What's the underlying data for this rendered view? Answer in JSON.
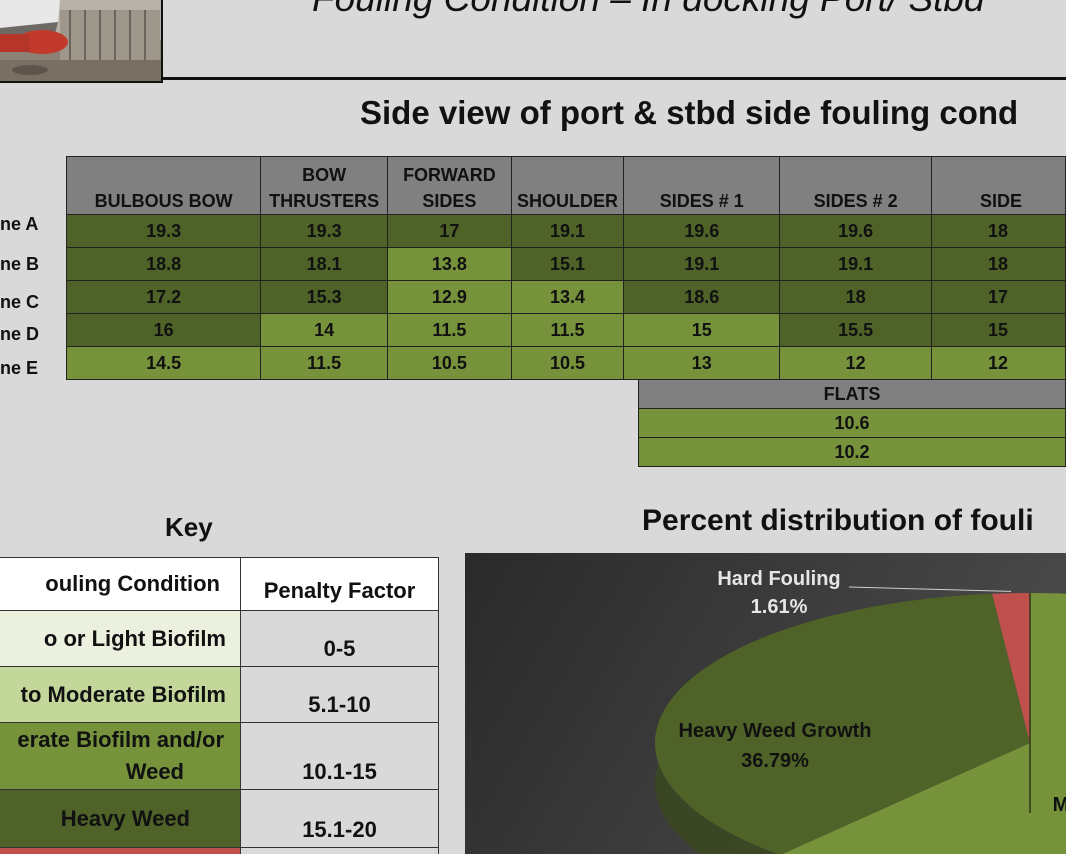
{
  "header": {
    "title": "Fouling Condition – In docking  Port/ Stbd"
  },
  "section_title": "Side view of port & stbd side fouling cond",
  "row_labels": [
    "ne A",
    "ne B",
    "ne C",
    "ne D",
    "ne E"
  ],
  "grid": {
    "headers": [
      [
        "BULBOUS BOW"
      ],
      [
        "BOW",
        "THRUSTERS"
      ],
      [
        "FORWARD",
        "SIDES"
      ],
      [
        "SHOULDER"
      ],
      [
        "SIDES # 1"
      ],
      [
        "SIDES # 2"
      ],
      [
        "SIDE"
      ]
    ],
    "rows": [
      [
        "19.3",
        "19.3",
        "17",
        "19.1",
        "19.6",
        "19.6",
        "18"
      ],
      [
        "18.8",
        "18.1",
        "13.8",
        "15.1",
        "19.1",
        "19.1",
        "18"
      ],
      [
        "17.2",
        "15.3",
        "12.9",
        "13.4",
        "18.6",
        "18",
        "17"
      ],
      [
        "16",
        "14",
        "11.5",
        "11.5",
        "15",
        "15.5",
        "15"
      ],
      [
        "14.5",
        "11.5",
        "10.5",
        "10.5",
        "13",
        "12",
        "12"
      ]
    ]
  },
  "flats": {
    "header": "FLATS",
    "values": [
      "10.6",
      "10.2"
    ]
  },
  "key": {
    "title": "Key",
    "col_condition": "ouling Condition",
    "col_penalty": "Penalty Factor",
    "rows": [
      {
        "condition": "o or Light Biofilm",
        "penalty": "0-5"
      },
      {
        "condition": "to Moderate Biofilm",
        "penalty": "5.1-10"
      },
      {
        "condition_line1": "erate Biofilm and/or",
        "condition_line2": "Weed",
        "penalty": "10.1-15"
      },
      {
        "condition": "Heavy  Weed",
        "penalty": "15.1-20"
      }
    ]
  },
  "colors": {
    "light_biofilm": "#ebf1de",
    "moderate_biofilm": "#c4d79b",
    "weed": "#76933c",
    "heavy_weed": "#4f6228",
    "hard_fouling": "#c0504d"
  },
  "chart_title": "Percent distribution of fouli",
  "chart_data": {
    "type": "pie",
    "title": "Percent distribution of fouli",
    "slices": [
      {
        "label": "Hard Fouling",
        "value": 1.61,
        "value_label": "1.61%",
        "color": "#c0504d"
      },
      {
        "label": "Heavy Weed Growth",
        "value": 36.79,
        "value_label": "36.79%",
        "color": "#4f6228"
      },
      {
        "label": "M",
        "value": null,
        "value_label": "",
        "color": "#76933c"
      }
    ]
  }
}
